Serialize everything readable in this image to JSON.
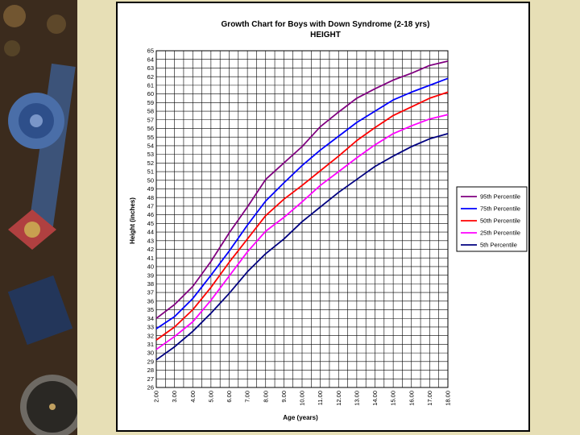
{
  "chart_data": {
    "type": "line",
    "title": "Growth Chart for Boys with Down Syndrome (2-18 yrs)",
    "subtitle": "HEIGHT",
    "xlabel": "Age (years)",
    "ylabel": "Height (inches)",
    "xlim": [
      2,
      18
    ],
    "ylim": [
      26,
      65
    ],
    "grid": true,
    "legend_position": "right",
    "x_ticks": [
      "2.00",
      "3.00",
      "4.00",
      "5.00",
      "6.00",
      "7.00",
      "8.00",
      "9.00",
      "10.00",
      "11.00",
      "12.00",
      "13.00",
      "14.00",
      "15.00",
      "16.00",
      "17.00",
      "18.00"
    ],
    "x": [
      2,
      3,
      4,
      5,
      6,
      7,
      8,
      9,
      10,
      11,
      12,
      13,
      14,
      15,
      16,
      17,
      18
    ],
    "series": [
      {
        "name": "95th Percentile",
        "color": "#800080",
        "values": [
          34.0,
          35.6,
          37.7,
          40.6,
          43.9,
          46.9,
          50.1,
          52.0,
          53.9,
          56.2,
          57.9,
          59.5,
          60.6,
          61.6,
          62.4,
          63.3,
          63.8
        ]
      },
      {
        "name": "75th Percentile",
        "color": "#0000ff",
        "values": [
          32.8,
          34.2,
          36.3,
          39.0,
          41.8,
          44.8,
          47.6,
          49.7,
          51.7,
          53.5,
          55.1,
          56.7,
          58.0,
          59.3,
          60.2,
          61.0,
          61.8
        ]
      },
      {
        "name": "50th Percentile",
        "color": "#ff0000",
        "values": [
          31.5,
          33.0,
          35.0,
          37.6,
          40.5,
          43.2,
          45.9,
          47.8,
          49.4,
          51.1,
          52.8,
          54.6,
          56.1,
          57.5,
          58.5,
          59.5,
          60.2
        ]
      },
      {
        "name": "25th Percentile",
        "color": "#ff00ff",
        "values": [
          30.4,
          31.9,
          33.6,
          36.1,
          38.9,
          41.7,
          44.1,
          45.7,
          47.5,
          49.4,
          51.0,
          52.6,
          54.1,
          55.4,
          56.3,
          57.1,
          57.6
        ]
      },
      {
        "name": "5th Percentile",
        "color": "#000080",
        "values": [
          29.2,
          30.7,
          32.5,
          34.6,
          36.9,
          39.4,
          41.5,
          43.2,
          45.2,
          46.9,
          48.6,
          50.1,
          51.6,
          52.8,
          53.9,
          54.8,
          55.4
        ]
      }
    ]
  }
}
